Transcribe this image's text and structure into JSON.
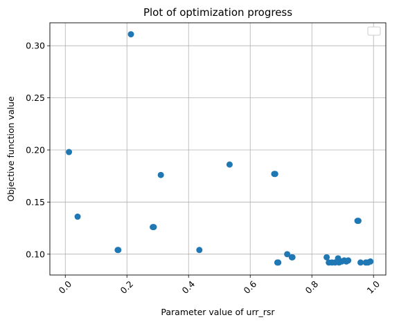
{
  "chart_data": {
    "type": "scatter",
    "title": "Plot of optimization progress",
    "xlabel": "Parameter value of urr_rsr",
    "ylabel": "Objective function value",
    "xlim": [
      -0.05,
      1.04
    ],
    "ylim": [
      0.08,
      0.322
    ],
    "xticks": [
      0.0,
      0.2,
      0.4,
      0.6,
      0.8,
      1.0
    ],
    "xtick_labels": [
      "0.0",
      "0.2",
      "0.4",
      "0.6",
      "0.8",
      "1.0"
    ],
    "xtick_rotation": 45,
    "yticks": [
      0.1,
      0.15,
      0.2,
      0.25,
      0.3
    ],
    "ytick_labels": [
      "0.10",
      "0.15",
      "0.20",
      "0.25",
      "0.30"
    ],
    "grid": true,
    "legend": "top-right, empty",
    "marker_color": "#1f77b4",
    "series": [
      {
        "points": [
          [
            0.012,
            0.198
          ],
          [
            0.213,
            0.311
          ],
          [
            0.04,
            0.136
          ],
          [
            0.17,
            0.104
          ],
          [
            0.172,
            0.104
          ],
          [
            0.284,
            0.126
          ],
          [
            0.287,
            0.126
          ],
          [
            0.31,
            0.176
          ],
          [
            0.435,
            0.104
          ],
          [
            0.533,
            0.186
          ],
          [
            0.678,
            0.177
          ],
          [
            0.681,
            0.177
          ],
          [
            0.688,
            0.092
          ],
          [
            0.691,
            0.092
          ],
          [
            0.72,
            0.1
          ],
          [
            0.735,
            0.097
          ],
          [
            0.737,
            0.097
          ],
          [
            0.848,
            0.097
          ],
          [
            0.855,
            0.092
          ],
          [
            0.865,
            0.092
          ],
          [
            0.875,
            0.092
          ],
          [
            0.885,
            0.096
          ],
          [
            0.888,
            0.092
          ],
          [
            0.897,
            0.093
          ],
          [
            0.905,
            0.094
          ],
          [
            0.912,
            0.093
          ],
          [
            0.918,
            0.094
          ],
          [
            0.948,
            0.132
          ],
          [
            0.951,
            0.132
          ],
          [
            0.958,
            0.092
          ],
          [
            0.975,
            0.092
          ],
          [
            0.982,
            0.092
          ],
          [
            0.99,
            0.093
          ]
        ]
      }
    ]
  }
}
